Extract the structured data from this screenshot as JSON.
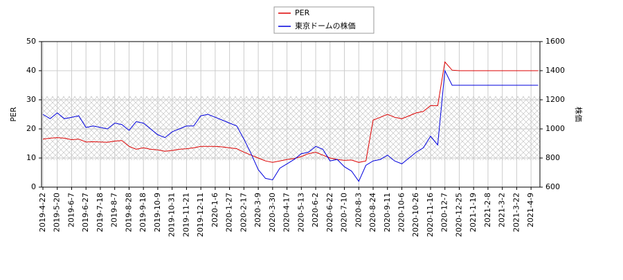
{
  "chart_data": {
    "type": "line",
    "x": [
      "2019-4-22",
      null,
      "2019-5-20",
      null,
      "2019-6-7",
      null,
      "2019-6-27",
      null,
      "2019-7-18",
      null,
      "2019-8-7",
      null,
      "2019-8-28",
      null,
      "2019-9-18",
      null,
      "2019-10-9",
      null,
      "2019-10-31",
      null,
      "2019-11-21",
      null,
      "2019-12-11",
      null,
      "2020-1-6",
      null,
      "2020-1-27",
      null,
      "2020-2-17",
      null,
      "2020-3-9",
      null,
      "2020-3-30",
      null,
      "2020-4-17",
      null,
      "2020-5-13",
      null,
      "2020-6-2",
      null,
      "2020-6-22",
      null,
      "2020-7-10",
      null,
      "2020-8-3",
      null,
      "2020-8-24",
      null,
      "2020-9-11",
      null,
      "2020-10-6",
      null,
      "2020-10-26",
      null,
      "2020-11-16",
      null,
      "2020-12-7",
      null,
      "2020-12-25",
      null,
      "2021-1-19",
      null,
      "2021-2-8",
      null,
      "2021-3-2",
      null,
      "2021-3-22",
      null,
      "2021-4-9",
      null
    ],
    "series": [
      {
        "name": "PER",
        "color": "#dd0000",
        "values": [
          16.5,
          16.8,
          17,
          16.8,
          16.3,
          16.5,
          15.5,
          15.6,
          15.5,
          15.4,
          15.8,
          16,
          14,
          13,
          13.5,
          13,
          12.8,
          12.3,
          12.6,
          13,
          13.2,
          13.5,
          14,
          14,
          14,
          13.8,
          13.5,
          13.2,
          12,
          11,
          10,
          9,
          8.5,
          9,
          9.5,
          9.8,
          10.5,
          11.5,
          12,
          11,
          10,
          9.5,
          9.2,
          9.3,
          8.5,
          9,
          23,
          24,
          25,
          24,
          23.5,
          24.5,
          25.5,
          26,
          28,
          28,
          43,
          40.2,
          40,
          40,
          40,
          40,
          40,
          40,
          40,
          40,
          40,
          40,
          40,
          40
        ]
      },
      {
        "name": "東京ドームの株価",
        "color": "#0000dd",
        "axis": "y2",
        "values": [
          1100,
          1070,
          1110,
          1070,
          1080,
          1090,
          1010,
          1020,
          1010,
          1000,
          1040,
          1030,
          990,
          1050,
          1040,
          1000,
          960,
          940,
          980,
          1000,
          1020,
          1020,
          1090,
          1100,
          1080,
          1060,
          1040,
          1020,
          930,
          830,
          720,
          660,
          650,
          730,
          760,
          790,
          830,
          840,
          880,
          860,
          780,
          790,
          740,
          710,
          640,
          750,
          780,
          790,
          820,
          780,
          760,
          800,
          840,
          870,
          950,
          890,
          1400,
          1300,
          1300,
          1300,
          1300,
          1300,
          1300,
          1300,
          1300,
          1300,
          1300,
          1300,
          1300,
          1300
        ]
      }
    ],
    "band": [
      9.3,
      31.2
    ],
    "ylabel": "PER",
    "y2label": "株価",
    "ylim": [
      0,
      50
    ],
    "yticks": [
      0,
      10,
      20,
      30,
      40,
      50
    ],
    "y2lim": [
      600,
      1600
    ],
    "y2ticks": [
      600,
      800,
      1000,
      1200,
      1400,
      1600
    ],
    "grid": true
  }
}
